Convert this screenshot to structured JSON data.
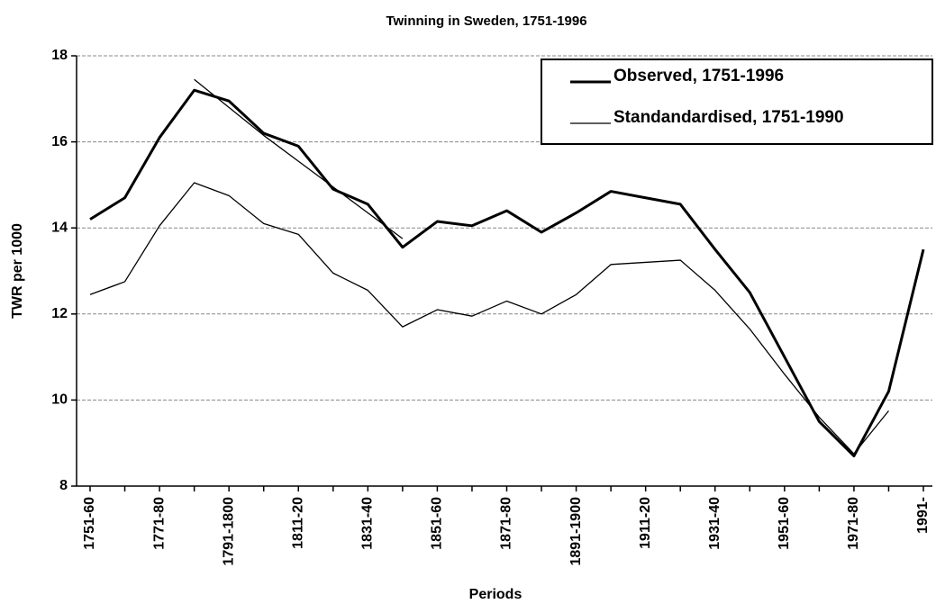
{
  "chart_data": {
    "type": "line",
    "title": "Twinning in Sweden, 1751-1996",
    "x_label": "Periods",
    "y_label": "TWR per 1000",
    "categories": [
      "1751-60",
      null,
      "1771-80",
      null,
      "1791-1800",
      null,
      "1811-20",
      null,
      "1831-40",
      null,
      "1851-60",
      null,
      "1871-80",
      null,
      "1891-1900",
      null,
      "1911-20",
      null,
      "1931-40",
      null,
      "1951-60",
      null,
      "1971-80",
      null,
      "1991-"
    ],
    "series": [
      {
        "name": "Observed, 1751-1996",
        "color": "#000000",
        "width": 3,
        "values": [
          14.2,
          14.7,
          16.1,
          17.2,
          16.95,
          16.2,
          15.9,
          14.9,
          14.55,
          13.55,
          14.15,
          14.05,
          14.4,
          13.9,
          14.35,
          14.85,
          14.7,
          14.55,
          13.5,
          12.5,
          11.0,
          9.5,
          8.7,
          10.2,
          13.5
        ]
      },
      {
        "name": "Standandardised, 1751-1990",
        "color": "#000000",
        "width": 1.3,
        "values": [
          12.45,
          12.75,
          14.05,
          15.05,
          14.75,
          14.1,
          13.85,
          12.95,
          12.55,
          11.7,
          12.1,
          11.95,
          12.3,
          12.0,
          12.45,
          13.15,
          13.2,
          13.25,
          12.55,
          11.65,
          10.6,
          9.6,
          8.75,
          9.75,
          null
        ]
      },
      {
        "color": "#000000",
        "width": 1.3,
        "values": [
          null,
          null,
          null,
          17.45,
          16.8,
          16.15,
          15.55,
          14.95,
          14.35,
          13.75,
          null,
          null,
          null,
          null,
          null,
          null,
          null,
          null,
          null,
          null,
          null,
          null,
          null,
          null,
          null
        ]
      }
    ],
    "ylim": [
      8,
      18
    ],
    "yticks": [
      8,
      10,
      12,
      14,
      16,
      18
    ],
    "grid": true,
    "grid_color": "#888888",
    "legend": "upper right"
  }
}
